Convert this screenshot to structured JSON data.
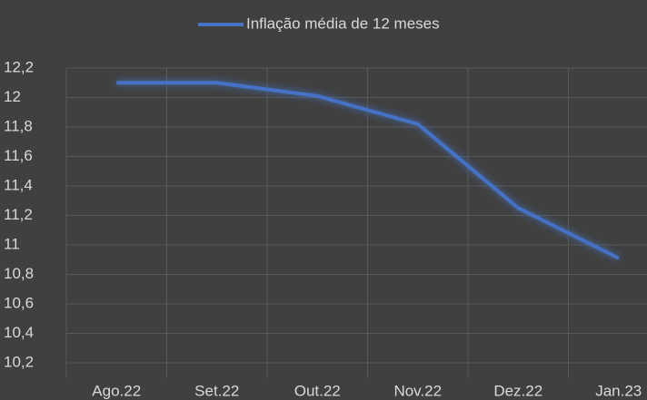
{
  "chart_data": {
    "type": "line",
    "categories": [
      "Ago.22",
      "Set.22",
      "Out.22",
      "Nov.22",
      "Dez.22",
      "Jan.23"
    ],
    "series": [
      {
        "name": "Inflação média de 12 meses",
        "color": "#4472c4",
        "values": [
          12.1,
          12.1,
          12.01,
          11.82,
          11.25,
          10.91
        ]
      }
    ],
    "ylim": [
      10.1,
      12.2
    ],
    "yticks": [
      {
        "value": 10.2,
        "label": "10,2"
      },
      {
        "value": 10.4,
        "label": "10,4"
      },
      {
        "value": 10.6,
        "label": "10,6"
      },
      {
        "value": 10.8,
        "label": "10,8"
      },
      11,
      {
        "value": 11.2,
        "label": "11,2"
      },
      {
        "value": 11.4,
        "label": "11,4"
      },
      {
        "value": 11.6,
        "label": "11,6"
      },
      {
        "value": 11.8,
        "label": "11,8"
      },
      12,
      {
        "value": 12.2,
        "label": "12,2"
      }
    ],
    "grid": true,
    "legend": "top"
  }
}
